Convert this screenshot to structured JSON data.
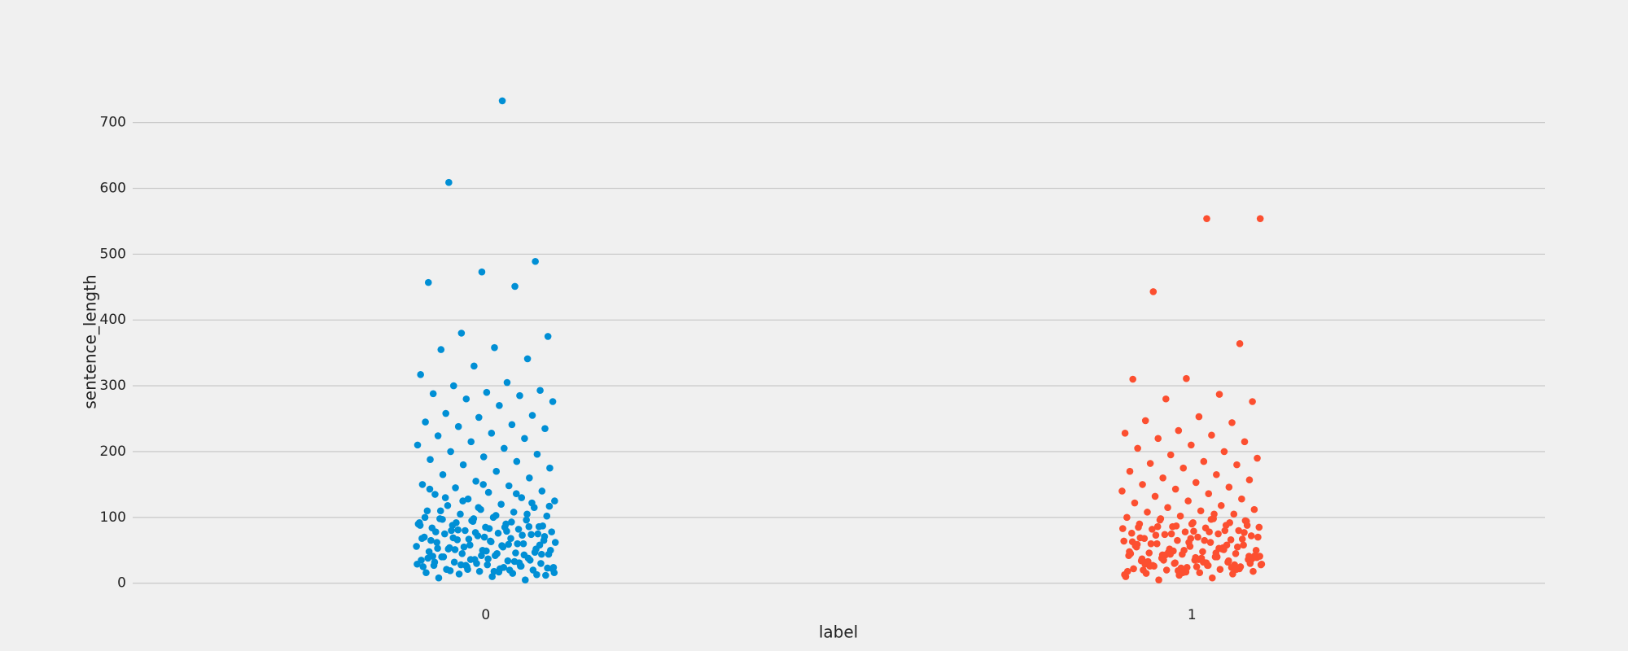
{
  "chart_data": {
    "type": "strip",
    "x_label": "label",
    "y_label": "sentence_length",
    "categories": [
      "0",
      "1"
    ],
    "colors": [
      "#008fd5",
      "#fc4f30"
    ],
    "values": [
      [
        733,
        609,
        489,
        473,
        457,
        451,
        380,
        375,
        358,
        355,
        341,
        330,
        317,
        305,
        300,
        293,
        290,
        288,
        285,
        280,
        276,
        270,
        258,
        255,
        252,
        245,
        241,
        238,
        235,
        228,
        224,
        220,
        215,
        210,
        205,
        200,
        196,
        192,
        188,
        185,
        180,
        175,
        170,
        165,
        160,
        155,
        150,
        148,
        145,
        140,
        138,
        135,
        130,
        128,
        125,
        120,
        118,
        115,
        112,
        110,
        108,
        105,
        102,
        100,
        98,
        96,
        94,
        92,
        90,
        88,
        86,
        85,
        84,
        82,
        80,
        78,
        76,
        75,
        74,
        72,
        70,
        68,
        66,
        65,
        64,
        62,
        60,
        58,
        56,
        55,
        54,
        52,
        50,
        48,
        46,
        45,
        44,
        42,
        40,
        38,
        36,
        35,
        34,
        32,
        30,
        28,
        27,
        26,
        25,
        24,
        22,
        21,
        20,
        18,
        16,
        15,
        14,
        12,
        10,
        8,
        5,
        95,
        90,
        85,
        80,
        75,
        70,
        65,
        60,
        55,
        50,
        45,
        40,
        35,
        30,
        25,
        20,
        92,
        87,
        83,
        78,
        73,
        67,
        62,
        57,
        52,
        47,
        42,
        38,
        33,
        28,
        23,
        18,
        110,
        105,
        98,
        88,
        79,
        69,
        58,
        49,
        41,
        31,
        27,
        22,
        17,
        130,
        122,
        115,
        100,
        93,
        81,
        71,
        63,
        53,
        43,
        36,
        29,
        24,
        19,
        13,
        150,
        143,
        136,
        125,
        117,
        103,
        97,
        86,
        77,
        68,
        59,
        51,
        44,
        37,
        32,
        26,
        21,
        16
      ],
      [
        554,
        554,
        443,
        364,
        311,
        310,
        287,
        280,
        276,
        253,
        247,
        244,
        232,
        228,
        225,
        220,
        215,
        210,
        205,
        200,
        195,
        190,
        185,
        182,
        180,
        175,
        170,
        165,
        160,
        157,
        153,
        150,
        146,
        143,
        140,
        136,
        132,
        128,
        125,
        122,
        118,
        115,
        112,
        110,
        108,
        105,
        102,
        100,
        98,
        96,
        94,
        92,
        90,
        88,
        86,
        85,
        84,
        82,
        80,
        78,
        76,
        75,
        74,
        72,
        70,
        68,
        66,
        65,
        64,
        62,
        60,
        58,
        56,
        55,
        54,
        52,
        50,
        48,
        46,
        45,
        44,
        42,
        40,
        38,
        36,
        35,
        34,
        32,
        30,
        28,
        27,
        26,
        25,
        24,
        22,
        21,
        20,
        18,
        16,
        15,
        14,
        12,
        10,
        8,
        5,
        95,
        90,
        85,
        80,
        75,
        70,
        65,
        60,
        55,
        50,
        45,
        40,
        35,
        30,
        25,
        20,
        92,
        87,
        83,
        78,
        73,
        67,
        62,
        57,
        52,
        47,
        42,
        38,
        33,
        28,
        23,
        18,
        105,
        98,
        88,
        79,
        69,
        58,
        49,
        41,
        31,
        27,
        22,
        17,
        63,
        53,
        43,
        37,
        36,
        29,
        24,
        19,
        13,
        97,
        86,
        77,
        68,
        59,
        51,
        44,
        39,
        32,
        26,
        21,
        16,
        48,
        46,
        43,
        41,
        39,
        37,
        34,
        31,
        29,
        27
      ]
    ],
    "ylim": [
      -35,
      770
    ],
    "yticks": [
      0,
      100,
      200,
      300,
      400,
      500,
      600,
      700
    ],
    "grid": true
  }
}
